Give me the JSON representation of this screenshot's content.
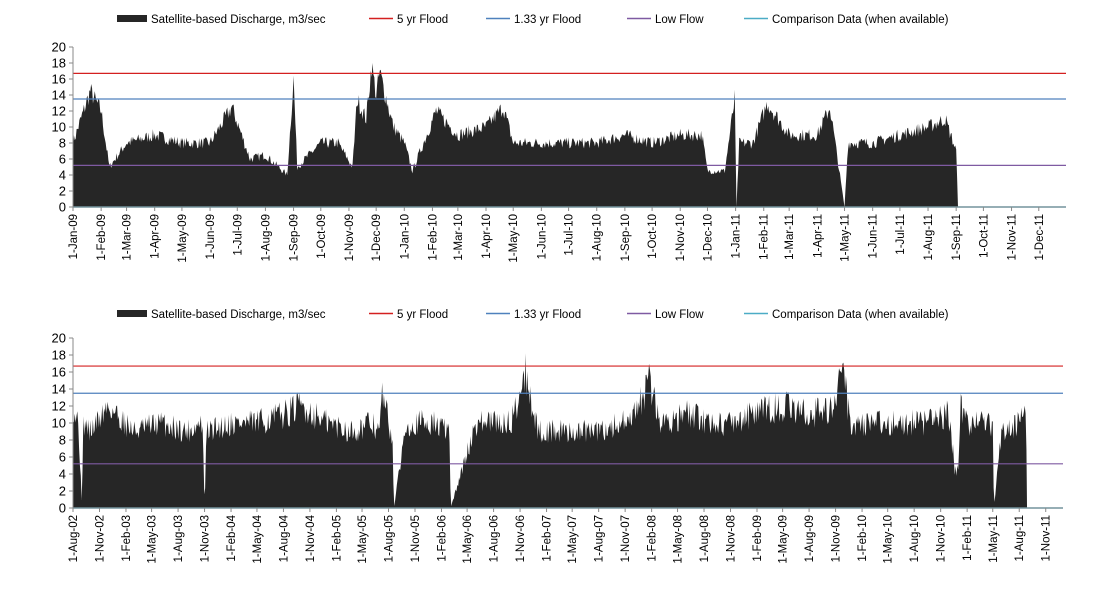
{
  "legend": [
    {
      "label": "Satellite-based Discharge, m3/sec",
      "color": "#262626",
      "kind": "area"
    },
    {
      "label": "5 yr Flood",
      "color": "#d42020",
      "kind": "line"
    },
    {
      "label": "1.33 yr Flood",
      "color": "#4f81bd",
      "kind": "line"
    },
    {
      "label": "Low Flow",
      "color": "#7f5aa2",
      "kind": "line"
    },
    {
      "label": "Comparison Data (when available)",
      "color": "#4bacc6",
      "kind": "line"
    }
  ],
  "chart_data": [
    {
      "type": "area",
      "ylim": [
        0,
        20
      ],
      "yticks": [
        0,
        2,
        4,
        6,
        8,
        10,
        12,
        14,
        16,
        18,
        20
      ],
      "xrange": [
        "2009-01-01",
        "2011-12-31"
      ],
      "x_tick_labels": [
        "1-Jan-09",
        "1-Feb-09",
        "1-Mar-09",
        "1-Apr-09",
        "1-May-09",
        "1-Jun-09",
        "1-Jul-09",
        "1-Aug-09",
        "1-Sep-09",
        "1-Oct-09",
        "1-Nov-09",
        "1-Dec-09",
        "1-Jan-10",
        "1-Feb-10",
        "1-Mar-10",
        "1-Apr-10",
        "1-May-10",
        "1-Jun-10",
        "1-Jul-10",
        "1-Aug-10",
        "1-Sep-10",
        "1-Oct-10",
        "1-Nov-10",
        "1-Dec-10",
        "1-Jan-11",
        "1-Feb-11",
        "1-Mar-11",
        "1-Apr-11",
        "1-May-11",
        "1-Jun-11",
        "1-Jul-11",
        "1-Aug-11",
        "1-Sep-11",
        "1-Oct-11",
        "1-Nov-11",
        "1-Dec-11"
      ],
      "reference_lines": {
        "5 yr Flood": 16.7,
        "1.33 yr Flood": 13.5,
        "Low Flow": 5.2,
        "Comparison Data (when available)": 0
      },
      "series": [
        {
          "name": "Satellite-based Discharge, m3/sec",
          "x": [
            "2009-01-01",
            "2009-01-20",
            "2009-02-01",
            "2009-02-10",
            "2009-03-01",
            "2009-04-01",
            "2009-05-01",
            "2009-06-01",
            "2009-06-25",
            "2009-07-15",
            "2009-08-01",
            "2009-08-25",
            "2009-09-01",
            "2009-09-05",
            "2009-10-01",
            "2009-10-20",
            "2009-11-05",
            "2009-11-10",
            "2009-11-20",
            "2009-11-26",
            "2009-12-01",
            "2009-12-05",
            "2009-12-20",
            "2010-01-01",
            "2010-01-10",
            "2010-02-05",
            "2010-03-01",
            "2010-04-01",
            "2010-04-20",
            "2010-05-01",
            "2010-06-01",
            "2010-07-01",
            "2010-08-01",
            "2010-09-01",
            "2010-10-01",
            "2010-11-01",
            "2010-11-25",
            "2010-12-01",
            "2010-12-20",
            "2010-12-31",
            "2011-01-02",
            "2011-01-05",
            "2011-01-20",
            "2011-02-05",
            "2011-03-01",
            "2011-04-01",
            "2011-04-15",
            "2011-05-01",
            "2011-05-05",
            "2011-06-01",
            "2011-07-01",
            "2011-08-01",
            "2011-08-20",
            "2011-09-01",
            "2011-09-03"
          ],
          "values": [
            8,
            14.5,
            12,
            5,
            8,
            9,
            8,
            8,
            12.5,
            6,
            6.5,
            4,
            16,
            5,
            8,
            8,
            5,
            13.5,
            11,
            17.8,
            14,
            16.8,
            10,
            8,
            4.5,
            12,
            9,
            10,
            12.5,
            8,
            8,
            8,
            8,
            9,
            8,
            9,
            9,
            4.5,
            4.5,
            13.5,
            0,
            8,
            8,
            13,
            9,
            9,
            12.5,
            0,
            8,
            8,
            9,
            10,
            11,
            7,
            0
          ]
        }
      ]
    },
    {
      "type": "area",
      "ylim": [
        0,
        20
      ],
      "yticks": [
        0,
        2,
        4,
        6,
        8,
        10,
        12,
        14,
        16,
        18,
        20
      ],
      "xrange": [
        "2002-08-01",
        "2011-12-31"
      ],
      "x_tick_labels": [
        "1-Aug-02",
        "1-Nov-02",
        "1-Feb-03",
        "1-May-03",
        "1-Aug-03",
        "1-Nov-03",
        "1-Feb-04",
        "1-May-04",
        "1-Aug-04",
        "1-Nov-04",
        "1-Feb-05",
        "1-May-05",
        "1-Aug-05",
        "1-Nov-05",
        "1-Feb-06",
        "1-May-06",
        "1-Aug-06",
        "1-Nov-06",
        "1-Feb-07",
        "1-May-07",
        "1-Aug-07",
        "1-Nov-07",
        "1-Feb-08",
        "1-May-08",
        "1-Aug-08",
        "1-Nov-08",
        "1-Feb-09",
        "1-May-09",
        "1-Aug-09",
        "1-Nov-09",
        "1-Feb-10",
        "1-May-10",
        "1-Aug-10",
        "1-Nov-10",
        "1-Feb-11",
        "1-May-11",
        "1-Aug-11",
        "1-Nov-11"
      ],
      "reference_lines": {
        "5 yr Flood": 16.7,
        "1.33 yr Flood": 13.5,
        "Low Flow": 5.2,
        "Comparison Data (when available)": 0
      },
      "series": [
        {
          "name": "Satellite-based Discharge, m3/sec",
          "x": [
            "2002-08-01",
            "2002-08-20",
            "2002-09-01",
            "2002-09-05",
            "2002-10-01",
            "2002-12-01",
            "2003-03-01",
            "2003-06-01",
            "2003-09-01",
            "2003-10-25",
            "2003-11-01",
            "2003-11-08",
            "2004-02-01",
            "2004-05-01",
            "2004-08-01",
            "2004-10-01",
            "2005-01-01",
            "2005-04-01",
            "2005-06-01",
            "2005-07-01",
            "2005-07-10",
            "2005-08-15",
            "2005-08-20",
            "2005-10-01",
            "2006-01-01",
            "2006-03-01",
            "2006-03-05",
            "2006-06-01",
            "2006-10-01",
            "2006-11-20",
            "2007-01-01",
            "2007-04-01",
            "2007-08-01",
            "2007-10-25",
            "2007-11-01",
            "2007-12-20",
            "2008-01-25",
            "2008-03-01",
            "2008-06-01",
            "2008-09-01",
            "2008-11-01",
            "2009-01-15",
            "2009-05-01",
            "2009-08-01",
            "2009-11-01",
            "2009-11-25",
            "2009-12-20",
            "2010-03-01",
            "2010-06-01",
            "2010-09-01",
            "2010-12-01",
            "2010-12-20",
            "2011-01-01",
            "2011-01-10",
            "2011-02-01",
            "2011-03-01",
            "2011-05-01",
            "2011-05-05",
            "2011-06-01",
            "2011-08-01",
            "2011-08-25",
            "2011-08-28"
          ],
          "values": [
            12,
            10,
            0,
            10,
            9,
            12,
            9,
            10,
            9,
            10,
            0,
            9,
            10,
            10,
            11,
            12,
            10,
            9,
            10,
            9,
            13.5,
            8,
            0,
            10,
            10,
            9,
            0,
            10,
            10,
            16,
            9,
            9,
            9,
            10,
            9,
            12,
            15,
            10,
            11,
            10,
            10,
            11,
            12,
            11,
            12,
            17.5,
            10,
            10,
            10,
            10,
            11,
            4.5,
            4.5,
            12,
            10,
            10,
            10,
            0,
            9,
            10,
            11,
            0
          ]
        }
      ]
    }
  ]
}
